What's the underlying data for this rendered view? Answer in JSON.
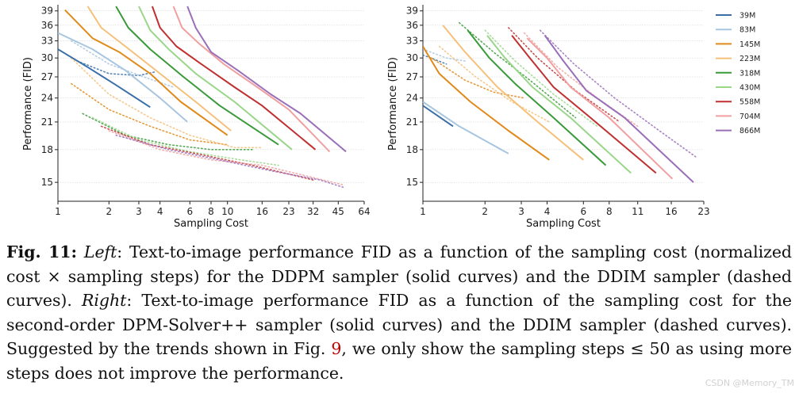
{
  "chart_data": [
    {
      "type": "line",
      "panel": "left",
      "xlabel": "Sampling Cost",
      "ylabel": "Performance (FID)",
      "xscale": "log",
      "yscale": "log",
      "xticks": [
        1,
        2,
        3,
        4,
        6,
        8,
        10,
        16,
        23,
        32,
        45,
        64
      ],
      "yticks": [
        15,
        18,
        21,
        24,
        27,
        30,
        33,
        36,
        39
      ],
      "xlim": [
        1,
        64
      ],
      "ylim": [
        13.5,
        40
      ],
      "grid": "horizontal",
      "series": [
        {
          "name": "39M",
          "color": "#3a6fa8",
          "style": "solid",
          "x": [
            1,
            1.5,
            2.2,
            3.5
          ],
          "y": [
            31.5,
            28.5,
            25.8,
            22.8
          ]
        },
        {
          "name": "83M",
          "color": "#a8c6e0",
          "style": "solid",
          "x": [
            1,
            1.6,
            2.5,
            4,
            5.8
          ],
          "y": [
            34.5,
            31.5,
            28,
            24,
            21
          ]
        },
        {
          "name": "145M",
          "color": "#e08a1a",
          "style": "solid",
          "x": [
            1.1,
            1.6,
            2.3,
            3.5,
            5.3,
            10
          ],
          "y": [
            39.2,
            33.5,
            31,
            27.5,
            23.5,
            19.5
          ]
        },
        {
          "name": "223M",
          "color": "#f5c07a",
          "style": "solid",
          "x": [
            1.5,
            1.8,
            2.5,
            4,
            6.5,
            10.5
          ],
          "y": [
            40,
            35.5,
            32,
            27.5,
            23.5,
            20
          ]
        },
        {
          "name": "318M",
          "color": "#3a9a3a",
          "style": "solid",
          "x": [
            2.2,
            2.6,
            3.5,
            5.5,
            9,
            20
          ],
          "y": [
            40,
            35.5,
            31.5,
            27,
            23,
            18.5
          ]
        },
        {
          "name": "430M",
          "color": "#9ad68a",
          "style": "solid",
          "x": [
            3,
            3.5,
            4.5,
            6.5,
            11,
            24
          ],
          "y": [
            40,
            35,
            31.5,
            27.5,
            23.5,
            18
          ]
        },
        {
          "name": "558M",
          "color": "#c03030",
          "style": "solid",
          "x": [
            3.6,
            4,
            5,
            7,
            11,
            16,
            33
          ],
          "y": [
            40,
            35.5,
            32,
            29,
            25.5,
            23,
            18
          ]
        },
        {
          "name": "704M",
          "color": "#f0a0a0",
          "style": "solid",
          "x": [
            4.8,
            5.4,
            6.8,
            9.5,
            15,
            23,
            40
          ],
          "y": [
            40,
            35.5,
            32.5,
            29,
            25.5,
            22.5,
            17.8
          ]
        },
        {
          "name": "866M",
          "color": "#9a6fba",
          "style": "solid",
          "x": [
            5.8,
            6.5,
            8,
            11.5,
            18,
            27,
            50
          ],
          "y": [
            40,
            35.5,
            31,
            28,
            24.5,
            22,
            17.8
          ]
        }
      ],
      "dashed_series": [
        {
          "name": "39M",
          "color": "#3a6fa8",
          "x": [
            1.3,
            2,
            3,
            3.8
          ],
          "y": [
            29.5,
            27.5,
            27.2,
            27.8
          ]
        },
        {
          "name": "83M",
          "color": "#a8c6e0",
          "x": [
            1.2,
            2,
            3.2,
            4.8
          ],
          "y": [
            33,
            29,
            27,
            25.5
          ]
        },
        {
          "name": "145M",
          "color": "#e08a1a",
          "x": [
            1.2,
            2,
            3.5,
            6,
            10
          ],
          "y": [
            26,
            22.5,
            20.5,
            19,
            18.5
          ]
        },
        {
          "name": "223M",
          "color": "#f5c07a",
          "x": [
            1.2,
            2,
            3.5,
            6,
            11,
            16
          ],
          "y": [
            30,
            24.5,
            21.5,
            19.5,
            18.2,
            18.2
          ]
        },
        {
          "name": "318M",
          "color": "#3a9a3a",
          "x": [
            1.4,
            2.5,
            4.5,
            8,
            14
          ],
          "y": [
            22,
            19.5,
            18.5,
            18,
            18
          ]
        },
        {
          "name": "430M",
          "color": "#9ad68a",
          "x": [
            1.6,
            3,
            6,
            12,
            20
          ],
          "y": [
            21.5,
            19,
            17.8,
            17,
            16.5
          ]
        },
        {
          "name": "558M",
          "color": "#c03030",
          "x": [
            1.8,
            3.5,
            7,
            14,
            32
          ],
          "y": [
            20.5,
            18.5,
            17.5,
            16.5,
            15.2
          ]
        },
        {
          "name": "704M",
          "color": "#f0a0a0",
          "x": [
            2,
            4,
            8,
            16,
            30,
            48
          ],
          "y": [
            20,
            18,
            17,
            16.5,
            15.5,
            14.8
          ]
        },
        {
          "name": "866M",
          "color": "#9a6fba",
          "x": [
            2.2,
            4.5,
            9,
            18,
            35,
            48
          ],
          "y": [
            19.5,
            18,
            17,
            16,
            15.2,
            14.6
          ]
        }
      ]
    },
    {
      "type": "line",
      "panel": "right",
      "xlabel": "Sampling Cost",
      "ylabel": "Performance (FID)",
      "xscale": "log",
      "yscale": "log",
      "xticks": [
        1,
        2,
        3,
        4,
        6,
        8,
        11,
        16,
        23
      ],
      "yticks": [
        15,
        18,
        21,
        24,
        27,
        30,
        33,
        36,
        39
      ],
      "xlim": [
        1,
        23
      ],
      "ylim": [
        13.5,
        40
      ],
      "grid": "horizontal",
      "legend": "top-right",
      "series": [
        {
          "name": "39M",
          "color": "#3a6fa8",
          "style": "solid",
          "x": [
            1,
            1.4
          ],
          "y": [
            23,
            20.5
          ]
        },
        {
          "name": "83M",
          "color": "#a8c6e0",
          "style": "solid",
          "x": [
            1,
            1.5,
            2.6
          ],
          "y": [
            23.5,
            20.5,
            17.6
          ]
        },
        {
          "name": "145M",
          "color": "#e08a1a",
          "style": "solid",
          "x": [
            1,
            1.2,
            1.7,
            2.6,
            4.1
          ],
          "y": [
            32,
            27.5,
            23.5,
            20,
            17
          ]
        },
        {
          "name": "223M",
          "color": "#f5c07a",
          "style": "solid",
          "x": [
            1.25,
            1.6,
            2.3,
            3.6,
            6
          ],
          "y": [
            36,
            31,
            25.5,
            21,
            17
          ]
        },
        {
          "name": "318M",
          "color": "#3a9a3a",
          "style": "solid",
          "x": [
            1.65,
            2.1,
            2.8,
            4.3,
            7.7
          ],
          "y": [
            35,
            30,
            26,
            21.5,
            16.5
          ]
        },
        {
          "name": "430M",
          "color": "#9ad68a",
          "style": "solid",
          "x": [
            2.05,
            2.5,
            3.4,
            5.2,
            10.2
          ],
          "y": [
            34,
            30,
            25.5,
            21.5,
            15.8
          ]
        },
        {
          "name": "558M",
          "color": "#c03030",
          "style": "solid",
          "x": [
            2.7,
            3.3,
            4.3,
            6.5,
            13.5
          ],
          "y": [
            34,
            30,
            25.5,
            21.5,
            15.8
          ]
        },
        {
          "name": "704M",
          "color": "#f0a0a0",
          "style": "solid",
          "x": [
            3.2,
            4,
            5.2,
            8,
            16.2
          ],
          "y": [
            33.5,
            30,
            25.5,
            21.5,
            15.3
          ]
        },
        {
          "name": "866M",
          "color": "#9a6fba",
          "style": "solid",
          "x": [
            3.9,
            4.8,
            6.2,
            9.5,
            20.5
          ],
          "y": [
            34,
            29.5,
            25,
            21.5,
            15
          ]
        }
      ],
      "dashed_series": [
        {
          "name": "39M",
          "color": "#3a6fa8",
          "x": [
            1,
            1.3
          ],
          "y": [
            30.5,
            29
          ]
        },
        {
          "name": "83M",
          "color": "#a8c6e0",
          "x": [
            1,
            1.3,
            1.6
          ],
          "y": [
            31.5,
            30,
            29.5
          ]
        },
        {
          "name": "145M",
          "color": "#e08a1a",
          "x": [
            1.1,
            1.6,
            2.2,
            3.1
          ],
          "y": [
            30,
            26.5,
            24.8,
            24
          ]
        },
        {
          "name": "223M",
          "color": "#f5c07a",
          "x": [
            1.2,
            1.8,
            2.7,
            4.1
          ],
          "y": [
            32,
            27,
            23.5,
            21
          ]
        },
        {
          "name": "318M",
          "color": "#3a9a3a",
          "x": [
            1.5,
            2.2,
            3.3,
            5.5
          ],
          "y": [
            36.5,
            31,
            26.5,
            21.5
          ]
        },
        {
          "name": "430M",
          "color": "#9ad68a",
          "x": [
            2,
            2.8,
            4.3,
            7
          ],
          "y": [
            35,
            29.5,
            24.5,
            20.5
          ]
        },
        {
          "name": "558M",
          "color": "#c03030",
          "x": [
            2.6,
            3.6,
            5.5,
            9
          ],
          "y": [
            35.5,
            30,
            25,
            21
          ]
        },
        {
          "name": "704M",
          "color": "#f0a0a0",
          "x": [
            3.1,
            4.5,
            7,
            11
          ],
          "y": [
            34.5,
            28.5,
            24,
            20.5
          ]
        },
        {
          "name": "866M",
          "color": "#9a6fba",
          "x": [
            3.7,
            5.4,
            8.5,
            14,
            21
          ],
          "y": [
            35,
            29,
            24,
            20,
            17.3
          ]
        }
      ]
    }
  ],
  "caption": {
    "fig_label": "Fig. 11:",
    "left_label": "Left",
    "left_text": ": Text-to-image performance FID as a function of the sampling cost (normalized cost × sampling steps) for the DDPM sampler (solid curves) and the DDIM sampler (dashed curves). ",
    "right_label": "Right",
    "right_text_1": ": Text-to-image performance FID as a function of the sampling cost for the second-order DPM-Solver++ sampler (solid curves) and the DDIM sampler (dashed curves). Suggested by the trends shown in Fig. ",
    "ref": "9",
    "right_text_2": ", we only show the sampling steps ≤ 50 as using more steps does not improve the performance."
  },
  "watermark": "CSDN @Memory_TM"
}
